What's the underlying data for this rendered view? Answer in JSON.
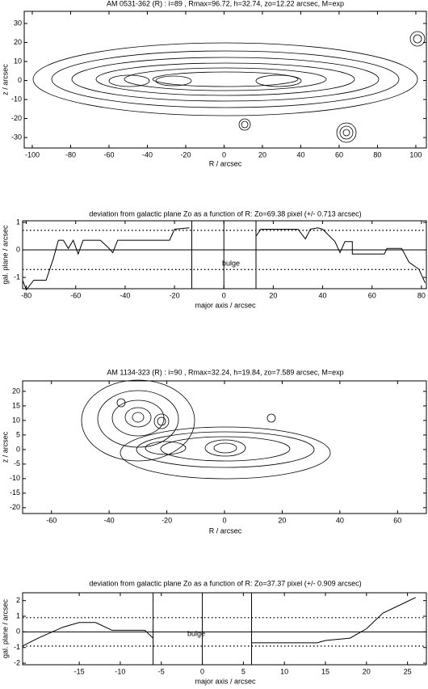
{
  "chart_data": [
    {
      "type": "contour",
      "title": "AM 0531-362 (R) :    i=89 , Rmax=96.72, h=32.74, zo=12.22 arcsec, M=exp",
      "xlabel": "R  /  arcsec",
      "ylabel": "z  /  arcsec",
      "xlim": [
        -104.2,
        105.5
      ],
      "ylim": [
        -35.5,
        36.4
      ],
      "xticks": [
        -100,
        -80,
        -60,
        -40,
        -20,
        0,
        20,
        40,
        60,
        80,
        100
      ],
      "yticks": [
        -30,
        -20,
        -10,
        0,
        10,
        20,
        30
      ]
    },
    {
      "type": "line",
      "title": "deviation from galactic plane Zo as a function of R:  Zo=69.38 pixel (+/- 0.713 arcsec)",
      "xlabel": "major axis  /  arcsec",
      "ylabel": "gal. plane  /  arcsec",
      "annotation": "bulge",
      "xlim": [
        -81.5,
        82
      ],
      "ylim": [
        -1.41,
        1.06
      ],
      "xticks": [
        -80,
        -60,
        -40,
        -20,
        0,
        20,
        40,
        60,
        80
      ],
      "yticks": [
        -1,
        0,
        1
      ],
      "hlines": [
        0.713,
        -0.713
      ],
      "vlines": [
        -13,
        13
      ],
      "x": [
        -81.5,
        -80,
        -77,
        -72,
        -69,
        -67,
        -65,
        -63,
        -61,
        -59,
        -57,
        -50,
        -47,
        -45,
        -43,
        -22,
        -20,
        -14,
        0,
        13,
        15,
        30,
        33,
        35,
        38,
        40,
        45,
        47,
        49,
        52,
        52,
        65,
        66,
        72,
        75,
        79,
        81.5
      ],
      "values": [
        -1.1,
        -1.45,
        -1.1,
        -1.1,
        -0.3,
        0.35,
        0.35,
        0.05,
        0.35,
        -0.15,
        0.35,
        0.35,
        0.1,
        -0.1,
        0.35,
        0.35,
        0.75,
        0.8,
        null,
        0.5,
        0.75,
        0.75,
        0.4,
        0.75,
        0.8,
        0.75,
        0.3,
        -0.1,
        0.3,
        0.3,
        -0.15,
        -0.15,
        0.05,
        0.05,
        -0.45,
        -0.7,
        -1.2
      ]
    },
    {
      "type": "contour",
      "title": "AM 1134-323 (R) :    i=90 , Rmax=32.24, h=19.84, zo=7.589 arcsec, M=exp",
      "xlabel": "R  /  arcsec",
      "ylabel": "z  /  arcsec",
      "xlim": [
        -70,
        70
      ],
      "ylim": [
        -22,
        23.6
      ],
      "xticks": [
        -60,
        -40,
        -20,
        0,
        20,
        40,
        60
      ],
      "yticks": [
        -20,
        -15,
        -10,
        -5,
        0,
        5,
        10,
        15,
        20
      ]
    },
    {
      "type": "line",
      "title": "deviation from galactic plane Zo as a function of R:  Zo=37.37 pixel (+/- 0.909 arcsec)",
      "xlabel": "major axis  /  arcsec",
      "ylabel": "gal. plane  /  arcsec",
      "annotation": "bulge",
      "xlim": [
        -21.9,
        27.3
      ],
      "ylim": [
        -2.1,
        2.5
      ],
      "xticks": [
        -15,
        -10,
        -5,
        0,
        5,
        10,
        15,
        20,
        25
      ],
      "yticks": [
        -2,
        -1,
        0,
        1,
        2
      ],
      "hlines": [
        0.909,
        -0.909
      ],
      "vlines": [
        -6,
        6
      ],
      "x": [
        -21.9,
        -20,
        -17,
        -15,
        -13,
        -11,
        -7,
        -6,
        0,
        6,
        14,
        15,
        18,
        20,
        22,
        24,
        26
      ],
      "values": [
        -0.9,
        -0.4,
        0.3,
        0.6,
        0.6,
        0.1,
        0.1,
        -0.4,
        null,
        -0.7,
        -0.7,
        -0.55,
        -0.4,
        0.2,
        1.2,
        1.7,
        2.2
      ]
    }
  ]
}
